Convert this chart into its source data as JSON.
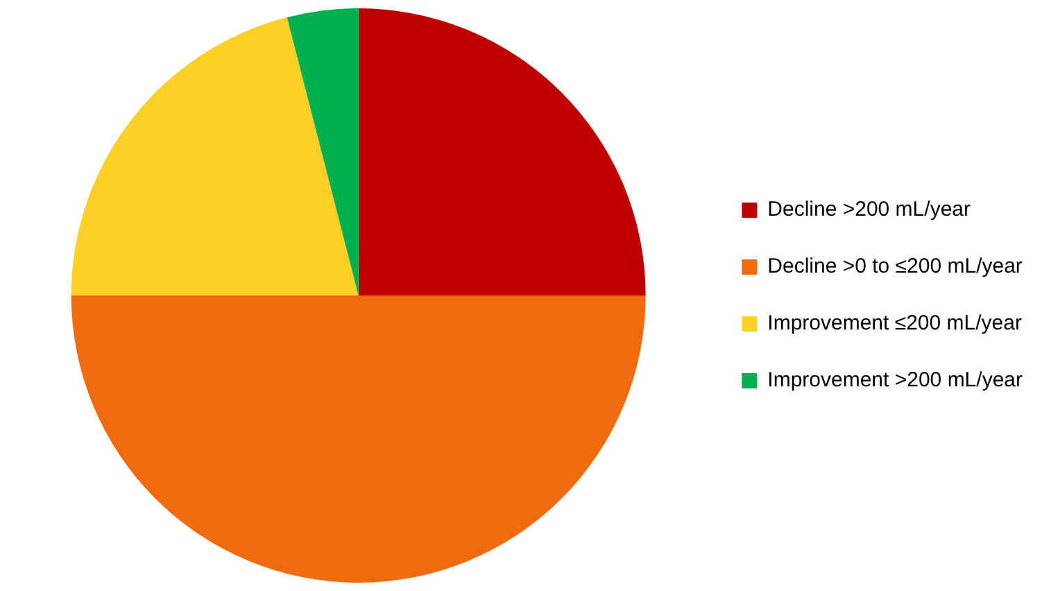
{
  "chart_data": {
    "type": "pie",
    "categories": [
      "Decline >200 mL/year",
      "Decline >0 to ≤200 mL/year",
      "Improvement ≤200 mL/year",
      "Improvement >200 mL/year"
    ],
    "values": [
      25,
      50,
      21,
      4
    ],
    "colors": [
      "#c00000",
      "#f06a0f",
      "#fdd026",
      "#00b050"
    ],
    "legend": "right"
  }
}
